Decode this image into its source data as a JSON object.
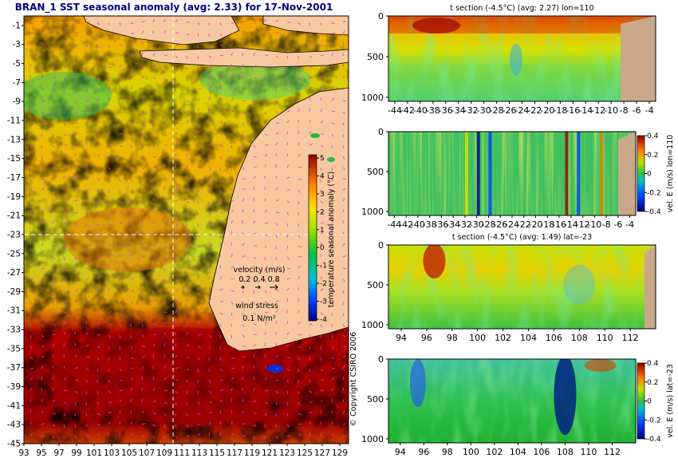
{
  "map": {
    "title": "BRAN_1  SST seasonal anomaly (avg: 2.33) for 17-Nov-2001",
    "x_ticks": [
      "93",
      "95",
      "97",
      "99",
      "101",
      "103",
      "105",
      "107",
      "109",
      "111",
      "113",
      "115",
      "117",
      "119",
      "121",
      "123",
      "125",
      "127",
      "129"
    ],
    "y_ticks": [
      "-1",
      "-3",
      "-5",
      "-7",
      "-9",
      "-11",
      "-13",
      "-15",
      "-17",
      "-19",
      "-21",
      "-23",
      "-25",
      "-27",
      "-29",
      "-31",
      "-33",
      "-35",
      "-37",
      "-39",
      "-41",
      "-43",
      "-45"
    ],
    "colorbar_ticks": [
      "5",
      "4",
      "3",
      "2",
      "1",
      "0",
      "-1",
      "-2",
      "-3",
      "-4"
    ],
    "colorbar_label": "temperature seasonal anomaly (°C)",
    "velocity_label": "velocity (m/s)",
    "velocity_scale": "0.2 0.4 0.8",
    "wind_label": "wind stress",
    "wind_scale": "0.1 N/m²",
    "copyright": "© Copyright CSIRO 2006"
  },
  "panels": [
    {
      "id": "p1",
      "title": "t section (-4.5°C) (avg: 2.27) lon=110",
      "x_ticks": [
        "-44",
        "-42",
        "-40",
        "-38",
        "-36",
        "-34",
        "-32",
        "-30",
        "-28",
        "-26",
        "-24",
        "-22",
        "-20",
        "-18",
        "-16",
        "-14",
        "-12",
        "-10",
        "-8",
        "-6",
        "-4"
      ],
      "y_ticks": [
        "0",
        "500",
        "1000"
      ],
      "cb_ticks": [],
      "cb_label": ""
    },
    {
      "id": "p2",
      "title": "",
      "x_ticks": [
        "-44",
        "-42",
        "-40",
        "-38",
        "-36",
        "-34",
        "-32",
        "-30",
        "-28",
        "-26",
        "-24",
        "-22",
        "-20",
        "-18",
        "-16",
        "-14",
        "-12",
        "-10",
        "-8",
        "-6",
        "-4"
      ],
      "y_ticks": [
        "0",
        "500",
        "1000"
      ],
      "cb_ticks": [
        "0.4",
        "0.2",
        "0",
        "-0.2",
        "-0.4"
      ],
      "cb_label": "vel. E (m/s) lon=110"
    },
    {
      "id": "p3",
      "title": "t section (-4.5°C) (avg: 1.49) lat=-23",
      "x_ticks": [
        "94",
        "96",
        "98",
        "100",
        "102",
        "104",
        "106",
        "108",
        "110",
        "112"
      ],
      "y_ticks": [
        "0",
        "500",
        "1000"
      ],
      "cb_ticks": [],
      "cb_label": ""
    },
    {
      "id": "p4",
      "title": "",
      "x_ticks": [
        "94",
        "96",
        "98",
        "100",
        "102",
        "104",
        "106",
        "108",
        "110",
        "112"
      ],
      "y_ticks": [
        "0",
        "500",
        "1000"
      ],
      "cb_ticks": [
        "0.4",
        "0.2",
        "0",
        "-0.2",
        "-0.4"
      ],
      "cb_label": "vel. E (m/s) lat=-23"
    }
  ],
  "chart_data": [
    {
      "type": "heatmap",
      "title": "BRAN_1  SST seasonal anomaly (avg: 2.33) for 17-Nov-2001",
      "xlim": [
        93,
        130
      ],
      "ylim": [
        -45,
        0
      ],
      "x_ticks": [
        93,
        95,
        97,
        99,
        101,
        103,
        105,
        107,
        109,
        111,
        113,
        115,
        117,
        119,
        121,
        123,
        125,
        127,
        129
      ],
      "y_ticks": [
        -1,
        -3,
        -5,
        -7,
        -9,
        -11,
        -13,
        -15,
        -17,
        -19,
        -21,
        -23,
        -25,
        -27,
        -29,
        -31,
        -33,
        -35,
        -37,
        -39,
        -41,
        -43,
        -45
      ],
      "colorbar": {
        "label": "temperature seasonal anomaly (°C)",
        "range": [
          -4,
          5
        ]
      },
      "average": 2.33,
      "date": "17-Nov-2001",
      "crosshair": {
        "lon": 110,
        "lat": -23
      }
    },
    {
      "type": "heatmap",
      "title": "t section (-4.5°C) (avg: 2.27) lon=110",
      "xlim": [
        -45,
        -3
      ],
      "ylim": [
        1050,
        0
      ],
      "x_ticks": [
        -44,
        -42,
        -40,
        -38,
        -36,
        -34,
        -32,
        -30,
        -28,
        -26,
        -24,
        -22,
        -20,
        -18,
        -16,
        -14,
        -12,
        -10,
        -8,
        -6,
        -4
      ],
      "y_ticks": [
        0,
        500,
        1000
      ],
      "average": 2.27
    },
    {
      "type": "heatmap",
      "title": "",
      "xlim": [
        -45,
        -3
      ],
      "ylim": [
        1050,
        0
      ],
      "x_ticks": [
        -44,
        -42,
        -40,
        -38,
        -36,
        -34,
        -32,
        -30,
        -28,
        -26,
        -24,
        -22,
        -20,
        -18,
        -16,
        -14,
        -12,
        -10,
        -8,
        -6,
        -4
      ],
      "y_ticks": [
        0,
        500,
        1000
      ],
      "colorbar": {
        "label": "vel. E (m/s) lon=110",
        "range": [
          -0.4,
          0.4
        ]
      }
    },
    {
      "type": "heatmap",
      "title": "t section (-4.5°C) (avg: 1.49) lat=-23",
      "xlim": [
        93,
        114
      ],
      "ylim": [
        1050,
        0
      ],
      "x_ticks": [
        94,
        96,
        98,
        100,
        102,
        104,
        106,
        108,
        110,
        112
      ],
      "y_ticks": [
        0,
        500,
        1000
      ],
      "average": 1.49
    },
    {
      "type": "heatmap",
      "title": "",
      "xlim": [
        93,
        114
      ],
      "ylim": [
        1050,
        0
      ],
      "x_ticks": [
        94,
        96,
        98,
        100,
        102,
        104,
        106,
        108,
        110,
        112
      ],
      "y_ticks": [
        0,
        500,
        1000
      ],
      "colorbar": {
        "label": "vel. E (m/s) lat=-23",
        "range": [
          -0.4,
          0.4
        ]
      }
    }
  ]
}
